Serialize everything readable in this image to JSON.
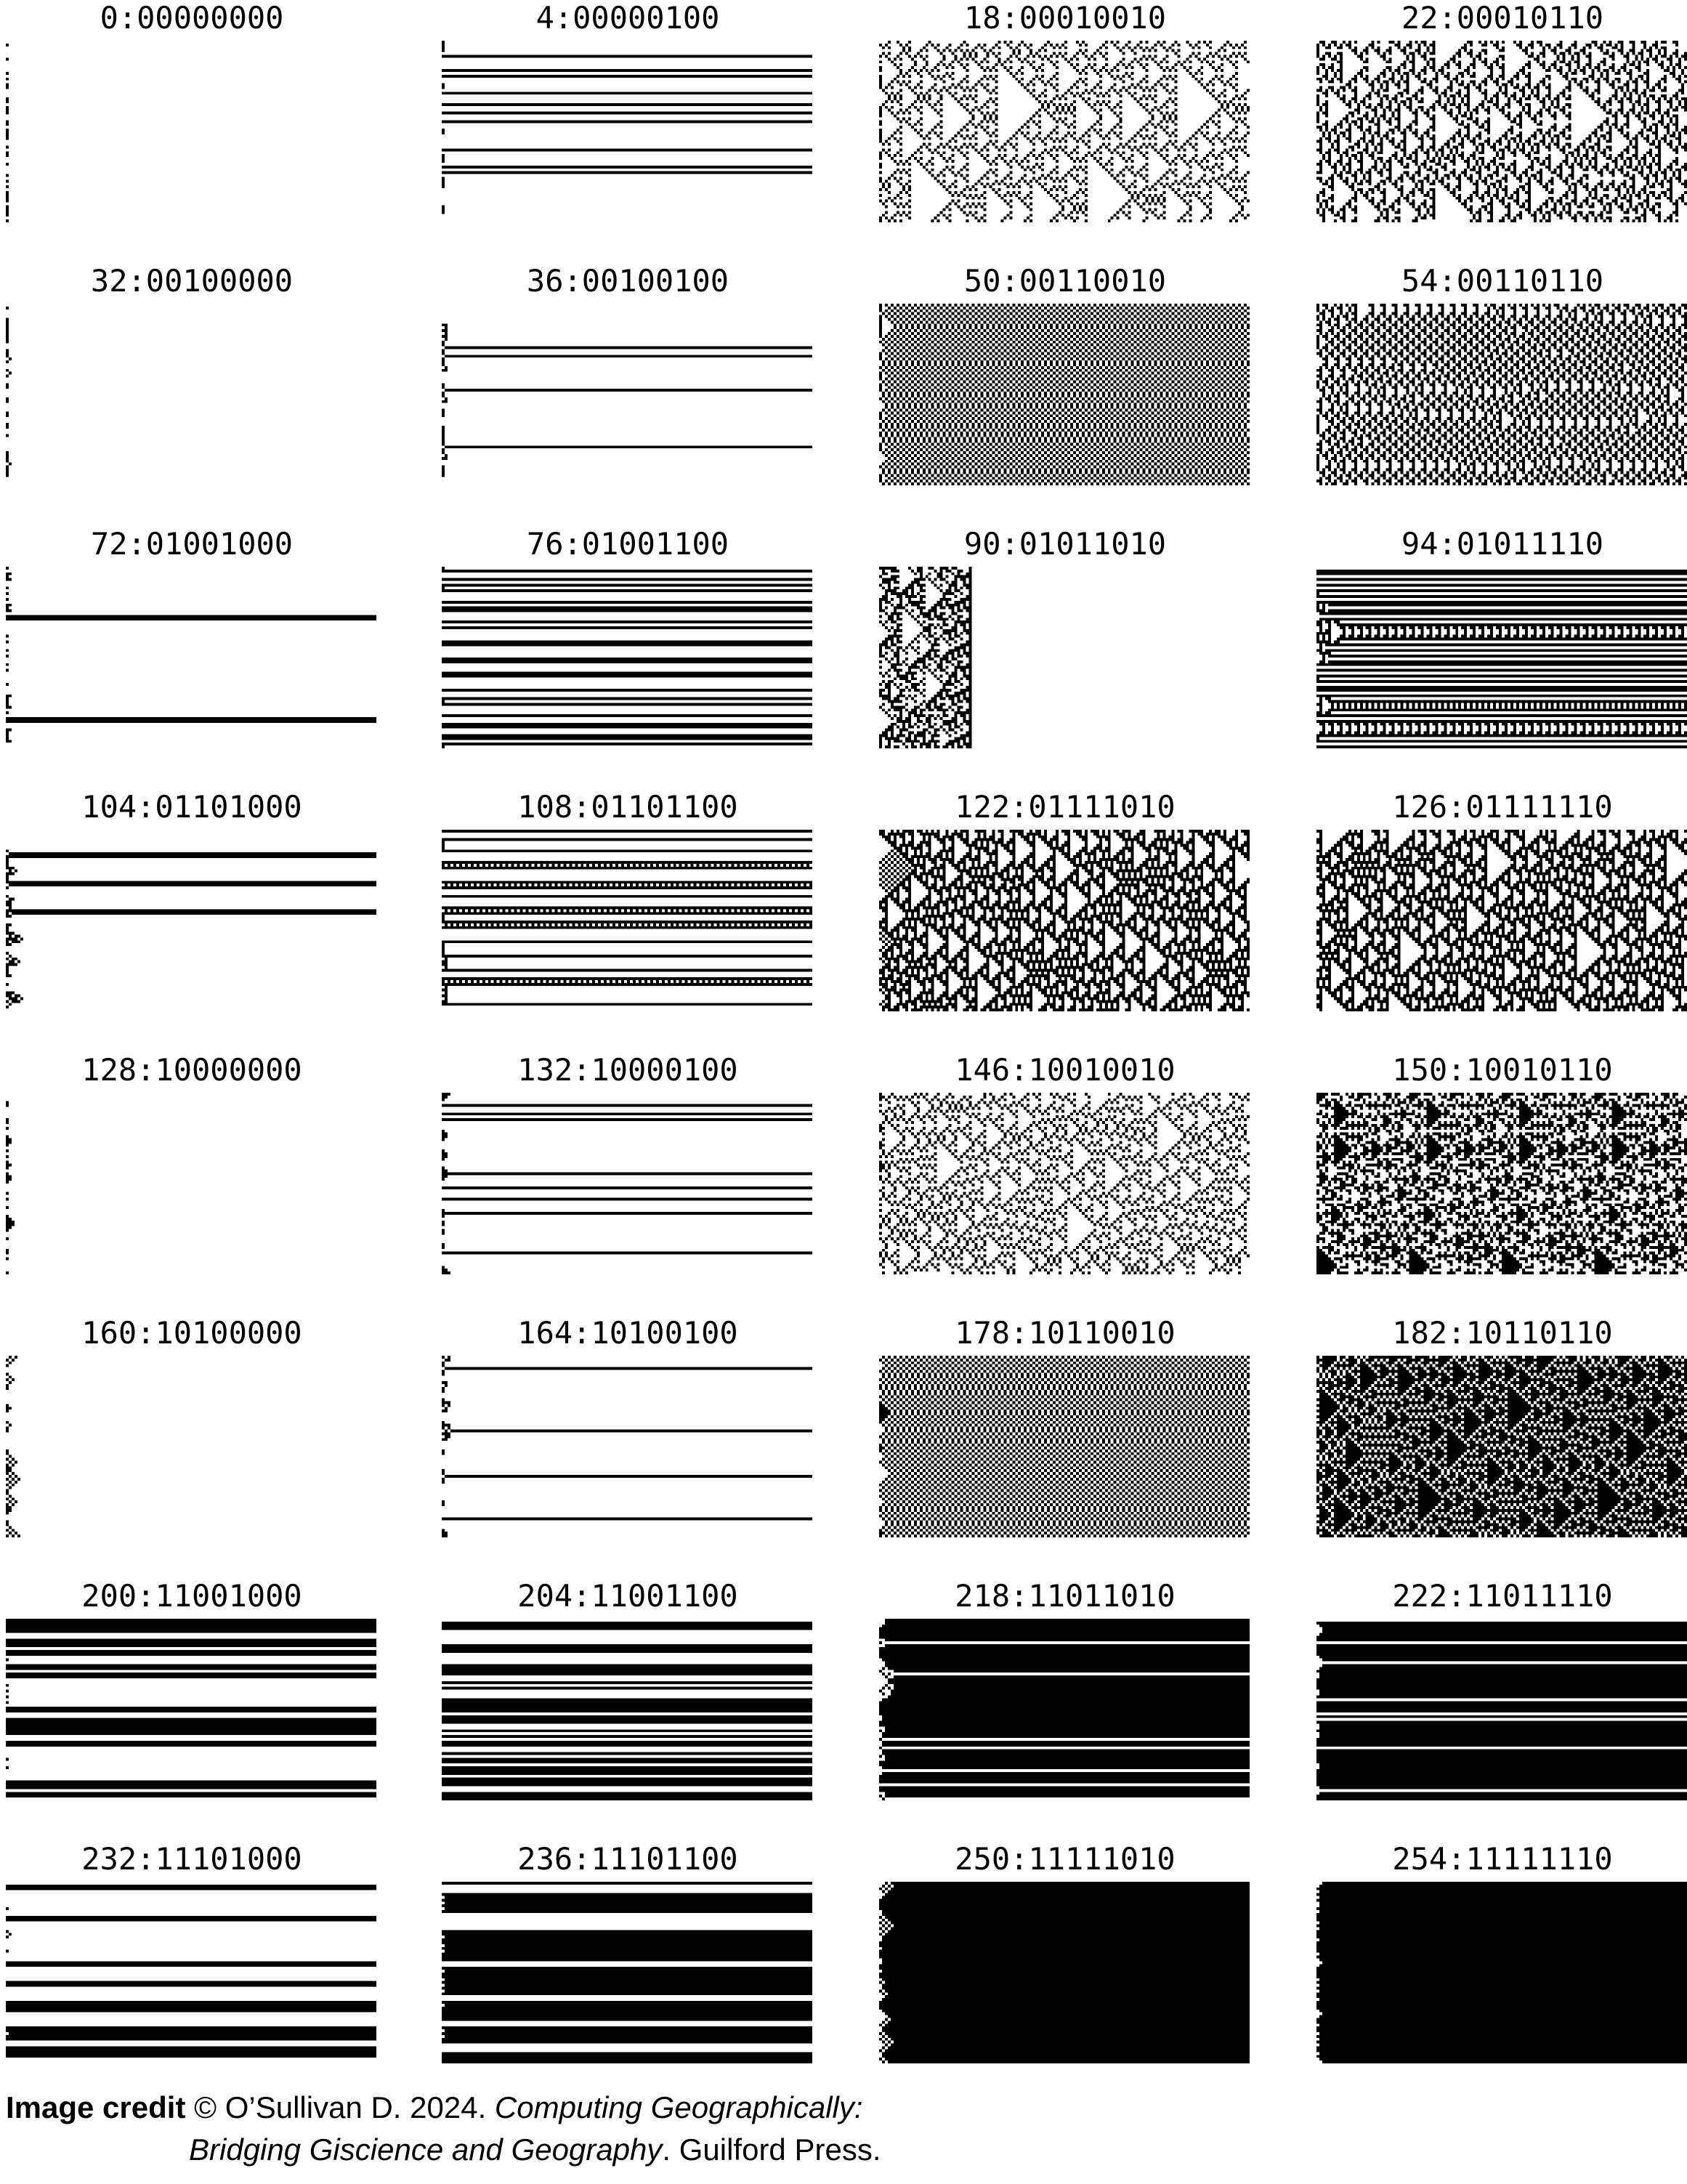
{
  "diagram": {
    "panels": [
      {
        "rule": 0,
        "label": "0:00000000"
      },
      {
        "rule": 4,
        "label": "4:00000100"
      },
      {
        "rule": 18,
        "label": "18:00010010"
      },
      {
        "rule": 22,
        "label": "22:00010110"
      },
      {
        "rule": 32,
        "label": "32:00100000"
      },
      {
        "rule": 36,
        "label": "36:00100100"
      },
      {
        "rule": 50,
        "label": "50:00110010"
      },
      {
        "rule": 54,
        "label": "54:00110110"
      },
      {
        "rule": 72,
        "label": "72:01001000"
      },
      {
        "rule": 76,
        "label": "76:01001100"
      },
      {
        "rule": 90,
        "label": "90:01011010"
      },
      {
        "rule": 94,
        "label": "94:01011110"
      },
      {
        "rule": 104,
        "label": "104:01101000"
      },
      {
        "rule": 108,
        "label": "108:01101100"
      },
      {
        "rule": 122,
        "label": "122:01111010"
      },
      {
        "rule": 126,
        "label": "126:01111110"
      },
      {
        "rule": 128,
        "label": "128:10000000"
      },
      {
        "rule": 132,
        "label": "132:10000100"
      },
      {
        "rule": 146,
        "label": "146:10010010"
      },
      {
        "rule": 150,
        "label": "150:10010110"
      },
      {
        "rule": 160,
        "label": "160:10100000"
      },
      {
        "rule": 164,
        "label": "164:10100100"
      },
      {
        "rule": 178,
        "label": "178:10110010"
      },
      {
        "rule": 182,
        "label": "182:10110110"
      },
      {
        "rule": 200,
        "label": "200:11001000"
      },
      {
        "rule": 204,
        "label": "204:11001100"
      },
      {
        "rule": 218,
        "label": "218:11011010"
      },
      {
        "rule": 222,
        "label": "222:11011110"
      },
      {
        "rule": 232,
        "label": "232:11101000"
      },
      {
        "rule": 236,
        "label": "236:11101100"
      },
      {
        "rule": 250,
        "label": "250:11111010"
      },
      {
        "rule": 254,
        "label": "254:11111110"
      }
    ]
  },
  "credit": {
    "lead": "Image credit",
    "line1": " © O’Sullivan D. 2024. ",
    "book_a": "Computing Geographically:",
    "book_b": "Bridging Giscience and Geography",
    "publisher": ". Guilford Press."
  },
  "colors": {
    "on": "#000000",
    "off": "#ffffff"
  }
}
